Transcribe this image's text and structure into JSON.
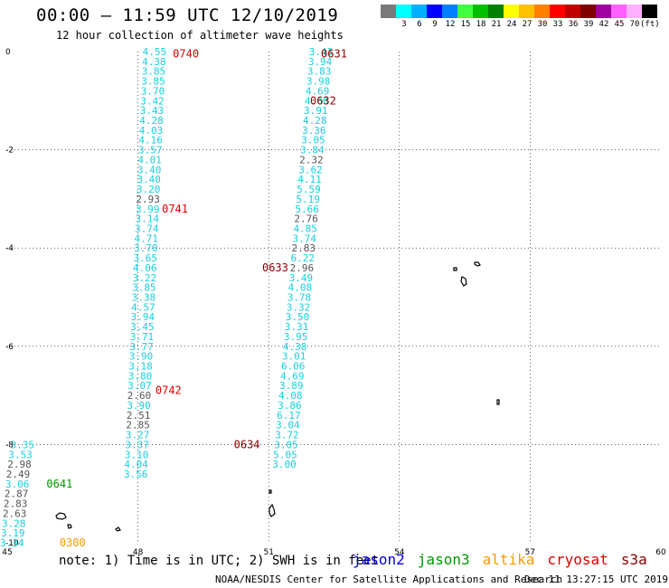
{
  "header": {
    "title": "00:00 – 11:59 UTC 12/10/2019",
    "subtitle": "12 hour collection of altimeter wave heights"
  },
  "colorbar": {
    "unit": "(ft)",
    "swatches": [
      {
        "label": "",
        "color": "#7a7a7a"
      },
      {
        "label": "3",
        "color": "#00ffff"
      },
      {
        "label": "6",
        "color": "#00b0ff"
      },
      {
        "label": "9",
        "color": "#0000ff"
      },
      {
        "label": "12",
        "color": "#0080ff"
      },
      {
        "label": "15",
        "color": "#40ff40"
      },
      {
        "label": "18",
        "color": "#00c000"
      },
      {
        "label": "21",
        "color": "#008000"
      },
      {
        "label": "24",
        "color": "#ffff00"
      },
      {
        "label": "27",
        "color": "#ffc000"
      },
      {
        "label": "30",
        "color": "#ff8000"
      },
      {
        "label": "33",
        "color": "#ff0000"
      },
      {
        "label": "36",
        "color": "#c00000"
      },
      {
        "label": "39",
        "color": "#800000"
      },
      {
        "label": "42",
        "color": "#a000a0"
      },
      {
        "label": "45",
        "color": "#ff60ff"
      },
      {
        "label": "70",
        "color": "#ffb0ff"
      },
      {
        "label": "",
        "color": "#000000"
      }
    ]
  },
  "footer": {
    "note": "note: 1) Time is in UTC; 2) SWH is in feet",
    "credit": "NOAA/NESDIS Center for Satellite Applications and Research",
    "timestamp": "Dec 11 13:27:15 UTC 2019"
  },
  "legend": [
    {
      "name": "jason2",
      "color": "#0000dd"
    },
    {
      "name": "jason3",
      "color": "#009900"
    },
    {
      "name": "altika",
      "color": "#ff9900"
    },
    {
      "name": "cryosat",
      "color": "#dd0000"
    },
    {
      "name": "s3a",
      "color": "#8b0000"
    }
  ],
  "chart_data": {
    "type": "scatter",
    "x_ticks": [
      "45",
      "48",
      "51",
      "54",
      "57",
      "60"
    ],
    "y_ticks": [
      "0",
      "-2",
      "-4",
      "-6",
      "-8",
      "-10"
    ],
    "xlim": [
      45,
      60
    ],
    "ylim": [
      -10,
      0
    ],
    "grid": true,
    "tracks": [
      {
        "satellite": "cryosat",
        "color": "#dd0000",
        "time_labels": [
          {
            "text": "0740",
            "lon": 48.8,
            "lat": -0.05
          },
          {
            "text": "0741",
            "lon": 48.55,
            "lat": -3.2
          },
          {
            "text": "0742",
            "lon": 48.4,
            "lat": -6.9
          }
        ],
        "points": [
          {
            "lon": 48.38,
            "lat": 0.0,
            "v": "4.55"
          },
          {
            "lon": 48.37,
            "lat": -0.2,
            "v": "4.38"
          },
          {
            "lon": 48.36,
            "lat": -0.4,
            "v": "3.85"
          },
          {
            "lon": 48.35,
            "lat": -0.6,
            "v": "3.85"
          },
          {
            "lon": 48.34,
            "lat": -0.8,
            "v": "3.70"
          },
          {
            "lon": 48.33,
            "lat": -1.0,
            "v": "3.42"
          },
          {
            "lon": 48.32,
            "lat": -1.2,
            "v": "3.43"
          },
          {
            "lon": 48.31,
            "lat": -1.4,
            "v": "4.28"
          },
          {
            "lon": 48.3,
            "lat": -1.6,
            "v": "4.03"
          },
          {
            "lon": 48.29,
            "lat": -1.8,
            "v": "4.16"
          },
          {
            "lon": 48.28,
            "lat": -2.0,
            "v": "3.57"
          },
          {
            "lon": 48.27,
            "lat": -2.2,
            "v": "4.01"
          },
          {
            "lon": 48.26,
            "lat": -2.4,
            "v": "3.40"
          },
          {
            "lon": 48.25,
            "lat": -2.6,
            "v": "3.40"
          },
          {
            "lon": 48.24,
            "lat": -2.8,
            "v": "3.20"
          },
          {
            "lon": 48.23,
            "lat": -3.0,
            "v": "2.93"
          },
          {
            "lon": 48.22,
            "lat": -3.2,
            "v": "3.99"
          },
          {
            "lon": 48.21,
            "lat": -3.4,
            "v": "3.14"
          },
          {
            "lon": 48.2,
            "lat": -3.6,
            "v": "3.74"
          },
          {
            "lon": 48.19,
            "lat": -3.8,
            "v": "4.71"
          },
          {
            "lon": 48.18,
            "lat": -4.0,
            "v": "3.70"
          },
          {
            "lon": 48.17,
            "lat": -4.2,
            "v": "3.65"
          },
          {
            "lon": 48.16,
            "lat": -4.4,
            "v": "4.06"
          },
          {
            "lon": 48.15,
            "lat": -4.6,
            "v": "3.22"
          },
          {
            "lon": 48.14,
            "lat": -4.8,
            "v": "3.85"
          },
          {
            "lon": 48.13,
            "lat": -5.0,
            "v": "3.38"
          },
          {
            "lon": 48.12,
            "lat": -5.2,
            "v": "4.57"
          },
          {
            "lon": 48.11,
            "lat": -5.4,
            "v": "3.94"
          },
          {
            "lon": 48.1,
            "lat": -5.6,
            "v": "3.45"
          },
          {
            "lon": 48.09,
            "lat": -5.8,
            "v": "3.71"
          },
          {
            "lon": 48.08,
            "lat": -6.0,
            "v": "3.77"
          },
          {
            "lon": 48.07,
            "lat": -6.2,
            "v": "3.90"
          },
          {
            "lon": 48.06,
            "lat": -6.4,
            "v": "3.18"
          },
          {
            "lon": 48.05,
            "lat": -6.6,
            "v": "3.80"
          },
          {
            "lon": 48.04,
            "lat": -6.8,
            "v": "3.07"
          },
          {
            "lon": 48.03,
            "lat": -7.0,
            "v": "2.60"
          },
          {
            "lon": 48.02,
            "lat": -7.2,
            "v": "3.90"
          },
          {
            "lon": 48.01,
            "lat": -7.4,
            "v": "2.51"
          },
          {
            "lon": 48.0,
            "lat": -7.6,
            "v": "2.85"
          },
          {
            "lon": 47.99,
            "lat": -7.8,
            "v": "3.27"
          },
          {
            "lon": 47.98,
            "lat": -8.0,
            "v": "3.37"
          },
          {
            "lon": 47.97,
            "lat": -8.2,
            "v": "3.10"
          },
          {
            "lon": 47.96,
            "lat": -8.4,
            "v": "4.04"
          },
          {
            "lon": 47.95,
            "lat": -8.6,
            "v": "3.56"
          }
        ]
      },
      {
        "satellite": "s3a",
        "color": "#8b0000",
        "time_labels": [
          {
            "text": "0631",
            "lon": 52.2,
            "lat": -0.05
          },
          {
            "text": "0632",
            "lon": 51.95,
            "lat": -1.0
          },
          {
            "text": "0633",
            "lon": 50.85,
            "lat": -4.4
          },
          {
            "text": "0634",
            "lon": 50.2,
            "lat": -8.0
          }
        ],
        "points": [
          {
            "lon": 52.2,
            "lat": 0.0,
            "v": "3.43"
          },
          {
            "lon": 52.18,
            "lat": -0.2,
            "v": "3.94"
          },
          {
            "lon": 52.16,
            "lat": -0.4,
            "v": "3.83"
          },
          {
            "lon": 52.14,
            "lat": -0.6,
            "v": "3.98"
          },
          {
            "lon": 52.12,
            "lat": -0.8,
            "v": "4.69"
          },
          {
            "lon": 52.1,
            "lat": -1.0,
            "v": "4.60"
          },
          {
            "lon": 52.08,
            "lat": -1.2,
            "v": "3.91"
          },
          {
            "lon": 52.06,
            "lat": -1.4,
            "v": "4.28"
          },
          {
            "lon": 52.04,
            "lat": -1.6,
            "v": "3.36"
          },
          {
            "lon": 52.02,
            "lat": -1.8,
            "v": "3.05"
          },
          {
            "lon": 52.0,
            "lat": -2.0,
            "v": "3.84"
          },
          {
            "lon": 51.98,
            "lat": -2.2,
            "v": "2.32"
          },
          {
            "lon": 51.96,
            "lat": -2.4,
            "v": "3.62"
          },
          {
            "lon": 51.94,
            "lat": -2.6,
            "v": "4.11"
          },
          {
            "lon": 51.92,
            "lat": -2.8,
            "v": "5.59"
          },
          {
            "lon": 51.9,
            "lat": -3.0,
            "v": "5.19"
          },
          {
            "lon": 51.88,
            "lat": -3.2,
            "v": "5.66"
          },
          {
            "lon": 51.86,
            "lat": -3.4,
            "v": "2.76"
          },
          {
            "lon": 51.84,
            "lat": -3.6,
            "v": "4.85"
          },
          {
            "lon": 51.82,
            "lat": -3.8,
            "v": "3.74"
          },
          {
            "lon": 51.8,
            "lat": -4.0,
            "v": "2.83"
          },
          {
            "lon": 51.78,
            "lat": -4.2,
            "v": "6.22"
          },
          {
            "lon": 51.76,
            "lat": -4.4,
            "v": "2.96"
          },
          {
            "lon": 51.74,
            "lat": -4.6,
            "v": "3.49"
          },
          {
            "lon": 51.72,
            "lat": -4.8,
            "v": "4.08"
          },
          {
            "lon": 51.7,
            "lat": -5.0,
            "v": "3.78"
          },
          {
            "lon": 51.68,
            "lat": -5.2,
            "v": "3.32"
          },
          {
            "lon": 51.66,
            "lat": -5.4,
            "v": "3.50"
          },
          {
            "lon": 51.64,
            "lat": -5.6,
            "v": "3.31"
          },
          {
            "lon": 51.62,
            "lat": -5.8,
            "v": "3.95"
          },
          {
            "lon": 51.6,
            "lat": -6.0,
            "v": "4.38"
          },
          {
            "lon": 51.58,
            "lat": -6.2,
            "v": "3.01"
          },
          {
            "lon": 51.56,
            "lat": -6.4,
            "v": "6.06"
          },
          {
            "lon": 51.54,
            "lat": -6.6,
            "v": "4.69"
          },
          {
            "lon": 51.52,
            "lat": -6.8,
            "v": "3.89"
          },
          {
            "lon": 51.5,
            "lat": -7.0,
            "v": "4.08"
          },
          {
            "lon": 51.48,
            "lat": -7.2,
            "v": "3.86"
          },
          {
            "lon": 51.46,
            "lat": -7.4,
            "v": "6.17"
          },
          {
            "lon": 51.44,
            "lat": -7.6,
            "v": "3.04"
          },
          {
            "lon": 51.42,
            "lat": -7.8,
            "v": "3.72"
          },
          {
            "lon": 51.4,
            "lat": -8.0,
            "v": "3.05"
          },
          {
            "lon": 51.38,
            "lat": -8.2,
            "v": "5.05"
          },
          {
            "lon": 51.36,
            "lat": -8.4,
            "v": "3.00"
          }
        ]
      },
      {
        "satellite": "jason3",
        "color": "#009900",
        "time_labels": [
          {
            "text": "0641",
            "lon": 45.9,
            "lat": -8.8
          }
        ],
        "points": [
          {
            "lon": 45.35,
            "lat": -8.0,
            "v": "3.35"
          },
          {
            "lon": 45.3,
            "lat": -8.2,
            "v": "3.53"
          },
          {
            "lon": 45.28,
            "lat": -8.4,
            "v": "2.98"
          },
          {
            "lon": 45.25,
            "lat": -8.6,
            "v": "2.49"
          },
          {
            "lon": 45.23,
            "lat": -8.8,
            "v": "3.06"
          },
          {
            "lon": 45.21,
            "lat": -9.0,
            "v": "2.87"
          },
          {
            "lon": 45.19,
            "lat": -9.2,
            "v": "2.83"
          },
          {
            "lon": 45.17,
            "lat": -9.4,
            "v": "2.63"
          },
          {
            "lon": 45.15,
            "lat": -9.6,
            "v": "3.28"
          },
          {
            "lon": 45.13,
            "lat": -9.8,
            "v": "3.19"
          },
          {
            "lon": 45.11,
            "lat": -10.0,
            "v": "3.34"
          }
        ]
      },
      {
        "satellite": "altika",
        "color": "#ff9900",
        "time_labels": [
          {
            "text": "0300",
            "lon": 46.2,
            "lat": -10.0
          }
        ],
        "points": []
      }
    ]
  }
}
